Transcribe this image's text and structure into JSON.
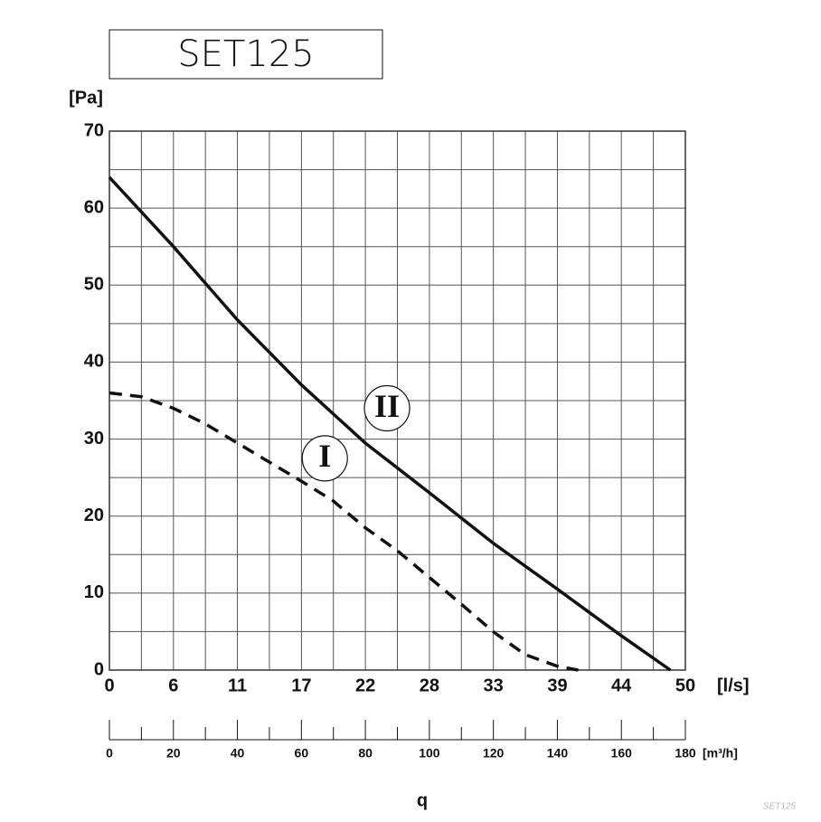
{
  "chart_data": {
    "type": "line",
    "title": "SET125",
    "watermark": "SET125",
    "y_label": "[Pa]",
    "x_label": "[l/s]",
    "x2_label": "[m³/h]",
    "axis_label": "q",
    "xlim": [
      0,
      50
    ],
    "xticks": [
      0,
      {
        "value": 5.56,
        "label": "6"
      },
      {
        "value": 11.11,
        "label": "11"
      },
      {
        "value": 16.67,
        "label": "17"
      },
      {
        "value": 22.22,
        "label": "22"
      },
      {
        "value": 27.78,
        "label": "28"
      },
      {
        "value": 33.33,
        "label": "33"
      },
      {
        "value": 38.89,
        "label": "39"
      },
      {
        "value": 44.44,
        "label": "44"
      },
      50
    ],
    "x2lim": [
      0,
      180
    ],
    "x2ticks": [
      0,
      20,
      40,
      60,
      80,
      100,
      120,
      140,
      160,
      180
    ],
    "x2minorticks": [
      10,
      30,
      50,
      70,
      90,
      110,
      130,
      150,
      170
    ],
    "ylim": [
      0,
      70
    ],
    "yticks": [
      0,
      10,
      20,
      30,
      40,
      50,
      60,
      70
    ],
    "yminorticks": [
      5,
      15,
      25,
      35,
      45,
      55,
      65
    ],
    "grid": true,
    "series": [
      {
        "name": "I",
        "color": "#111111",
        "dashed": true,
        "x": [
          0,
          2.8,
          5.56,
          8.3,
          11.1,
          13.9,
          16.7,
          19.4,
          22.2,
          25,
          27.8,
          30.6,
          33.3,
          36.1,
          38.9,
          40.7
        ],
        "values": [
          36,
          35.5,
          34,
          32,
          29.5,
          27,
          24.5,
          22,
          18.5,
          15.5,
          12,
          8.5,
          5,
          2,
          0.5,
          0
        ]
      },
      {
        "name": "II",
        "color": "#111111",
        "dashed": false,
        "x": [
          0,
          5.56,
          11.1,
          16.7,
          22.2,
          27.8,
          33.3,
          38.9,
          44.4,
          48.7
        ],
        "values": [
          64,
          55,
          45.5,
          37,
          29.5,
          23,
          16.5,
          10.5,
          4.5,
          0
        ]
      }
    ],
    "series_label_positions": [
      [
        18.7,
        27.5
      ],
      [
        24.1,
        34
      ]
    ]
  }
}
